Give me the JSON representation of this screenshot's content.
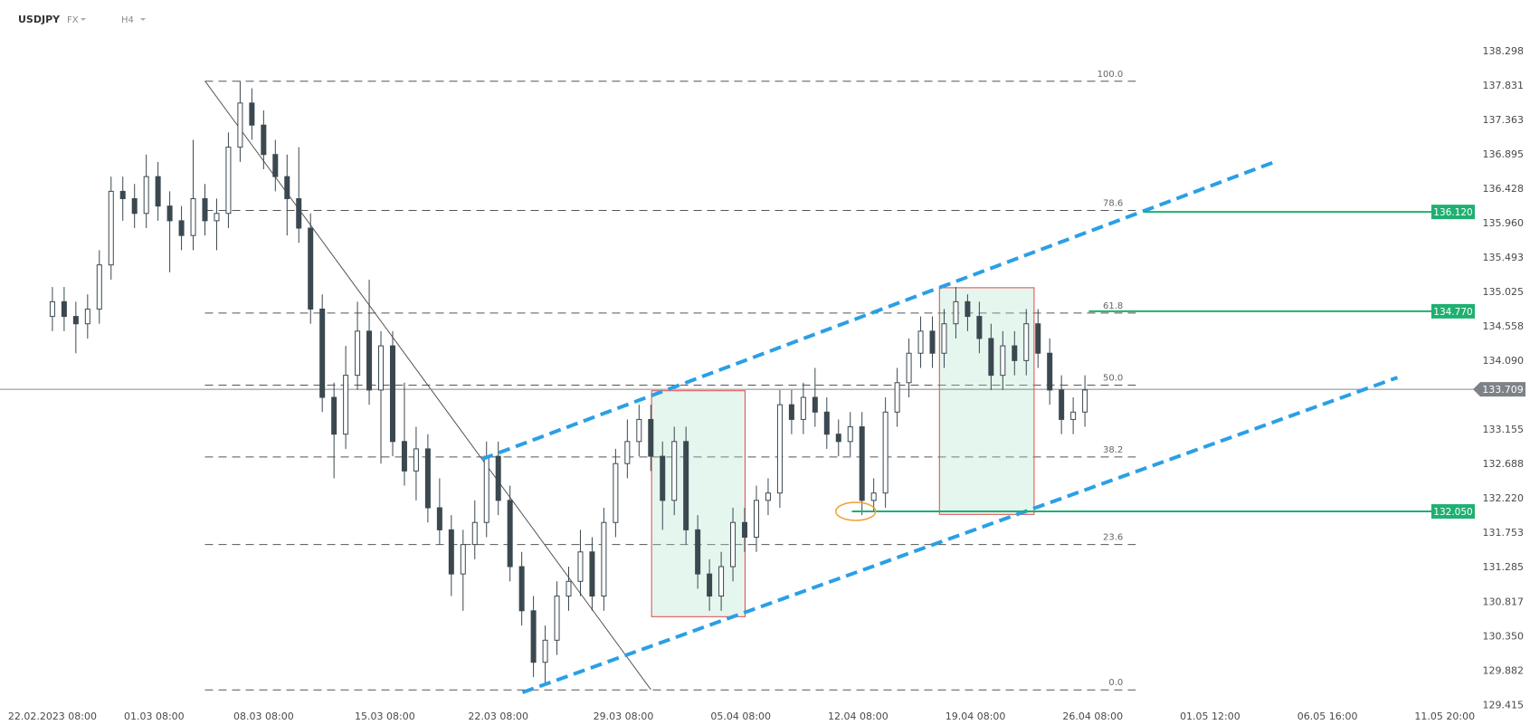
{
  "header": {
    "symbol": "USDJPY",
    "market": "FX",
    "timeframe": "H4"
  },
  "chart_data": {
    "type": "candlestick",
    "x": [
      0,
      3,
      6,
      9,
      12,
      15,
      18,
      21,
      24,
      27,
      30,
      33,
      36,
      39,
      42,
      45,
      48,
      51,
      54,
      57,
      60,
      63,
      66,
      69,
      72,
      75,
      78,
      81,
      84,
      87,
      90,
      93,
      96,
      99,
      102,
      105,
      108,
      111,
      114,
      117,
      120,
      123,
      126,
      129,
      132,
      135,
      138,
      141,
      144,
      147,
      150,
      153,
      156,
      159,
      162,
      165,
      168,
      171,
      174,
      177,
      180,
      183,
      186,
      189,
      192,
      195,
      198,
      201,
      204,
      207,
      210,
      213,
      216,
      219,
      222,
      225,
      228,
      231,
      234,
      237,
      240,
      243,
      246,
      249,
      252,
      255,
      258,
      261,
      264
    ],
    "open": [
      134.7,
      134.9,
      134.7,
      134.6,
      134.8,
      135.4,
      136.4,
      136.3,
      136.1,
      136.6,
      136.2,
      136.0,
      135.8,
      136.3,
      136.0,
      136.1,
      137.0,
      137.6,
      137.3,
      136.9,
      136.6,
      136.3,
      135.9,
      134.8,
      133.6,
      133.1,
      133.9,
      134.5,
      133.7,
      134.3,
      133.0,
      132.6,
      132.9,
      132.1,
      131.8,
      131.2,
      131.6,
      131.9,
      132.8,
      132.2,
      131.3,
      130.7,
      130.0,
      130.3,
      130.9,
      131.1,
      131.5,
      130.9,
      131.9,
      132.7,
      133.0,
      133.3,
      132.8,
      132.2,
      133.0,
      131.8,
      131.2,
      130.9,
      131.3,
      131.9,
      131.7,
      132.2,
      132.3,
      133.5,
      133.3,
      133.6,
      133.4,
      133.1,
      133.0,
      133.2,
      132.2,
      132.3,
      133.4,
      133.8,
      134.2,
      134.5,
      134.2,
      134.6,
      134.9,
      134.7,
      134.4,
      133.9,
      134.3,
      134.1,
      134.6,
      134.2,
      133.7,
      133.3,
      133.4
    ],
    "high": [
      135.1,
      135.1,
      134.9,
      135.0,
      135.6,
      136.6,
      136.6,
      136.5,
      136.9,
      136.8,
      136.4,
      136.2,
      137.1,
      136.5,
      136.3,
      137.2,
      137.9,
      137.8,
      137.5,
      137.1,
      136.9,
      137.0,
      136.1,
      135.0,
      133.8,
      134.3,
      134.9,
      135.2,
      134.5,
      134.5,
      133.8,
      133.2,
      133.1,
      132.5,
      132.0,
      131.8,
      132.2,
      133.0,
      133.0,
      132.4,
      131.5,
      130.9,
      130.5,
      131.1,
      131.3,
      131.8,
      131.7,
      132.1,
      132.9,
      133.3,
      133.5,
      133.5,
      133.0,
      133.2,
      133.2,
      132.0,
      131.4,
      131.5,
      132.1,
      132.1,
      132.4,
      132.5,
      133.7,
      133.7,
      133.8,
      134.0,
      133.6,
      133.3,
      133.4,
      133.4,
      132.5,
      133.6,
      134.0,
      134.4,
      134.7,
      134.7,
      134.8,
      135.1,
      135.0,
      134.9,
      134.6,
      134.5,
      134.5,
      134.8,
      134.8,
      134.4,
      133.9,
      133.6,
      133.9
    ],
    "low": [
      134.5,
      134.5,
      134.2,
      134.4,
      134.6,
      135.2,
      136.0,
      135.9,
      135.9,
      136.0,
      135.3,
      135.6,
      135.6,
      135.8,
      135.6,
      135.9,
      136.8,
      137.1,
      136.7,
      136.4,
      135.8,
      135.7,
      134.6,
      133.4,
      132.5,
      132.9,
      133.7,
      133.5,
      132.7,
      132.8,
      132.4,
      132.2,
      131.9,
      131.6,
      130.9,
      130.7,
      131.4,
      131.7,
      132.0,
      131.1,
      130.5,
      129.8,
      129.7,
      130.1,
      130.7,
      130.9,
      130.7,
      130.7,
      131.7,
      132.5,
      132.8,
      132.6,
      131.8,
      132.0,
      131.6,
      131.0,
      130.7,
      130.7,
      131.1,
      131.5,
      131.5,
      132.0,
      132.1,
      133.1,
      133.1,
      133.2,
      132.9,
      132.8,
      132.8,
      132.0,
      132.05,
      132.1,
      133.2,
      133.6,
      134.0,
      134.0,
      134.0,
      134.4,
      134.5,
      134.2,
      133.7,
      133.7,
      133.9,
      133.9,
      134.0,
      133.5,
      133.1,
      133.1,
      133.2
    ],
    "close": [
      134.9,
      134.7,
      134.6,
      134.8,
      135.4,
      136.4,
      136.3,
      136.1,
      136.6,
      136.2,
      136.0,
      135.8,
      136.3,
      136.0,
      136.1,
      137.0,
      137.6,
      137.3,
      136.9,
      136.6,
      136.3,
      135.9,
      134.8,
      133.6,
      133.1,
      133.9,
      134.5,
      133.7,
      134.3,
      133.0,
      132.6,
      132.9,
      132.1,
      131.8,
      131.2,
      131.6,
      131.9,
      132.8,
      132.2,
      131.3,
      130.7,
      130.0,
      130.3,
      130.9,
      131.1,
      131.5,
      130.9,
      131.9,
      132.7,
      133.0,
      133.3,
      132.8,
      132.2,
      133.0,
      131.8,
      131.2,
      130.9,
      131.3,
      131.9,
      131.7,
      132.2,
      132.3,
      133.5,
      133.3,
      133.6,
      133.4,
      133.1,
      133.0,
      133.2,
      132.2,
      132.3,
      133.4,
      133.8,
      134.2,
      134.5,
      134.2,
      134.6,
      134.9,
      134.7,
      134.4,
      133.9,
      134.3,
      134.1,
      134.6,
      134.2,
      133.7,
      133.3,
      133.4,
      133.7
    ],
    "up_color": "#ffffff",
    "down_color": "#3b4850",
    "xlim": [
      -13.4,
      366
    ],
    "ylim": [
      129.32,
      139.0
    ],
    "xticks": [
      {
        "value": 0,
        "label": "22.02.2023  08:00"
      },
      {
        "value": 26,
        "label": "01.03  08:00"
      },
      {
        "value": 54,
        "label": "08.03  08:00"
      },
      {
        "value": 85,
        "label": "15.03  08:00"
      },
      {
        "value": 114,
        "label": "22.03  08:00"
      },
      {
        "value": 146,
        "label": "29.03  08:00"
      },
      {
        "value": 176,
        "label": "05.04  08:00"
      },
      {
        "value": 206,
        "label": "12.04  08:00"
      },
      {
        "value": 236,
        "label": "19.04  08:00"
      },
      {
        "value": 266,
        "label": "26.04  08:00"
      },
      {
        "value": 296,
        "label": "01.05  12:00"
      },
      {
        "value": 326,
        "label": "06.05  16:00"
      },
      {
        "value": 356,
        "label": "11.05  20:00"
      }
    ],
    "yticks": [
      138.298,
      137.831,
      137.363,
      136.895,
      136.428,
      {
        "value": 135.96,
        "label": "135.960"
      },
      135.493,
      135.025,
      134.558,
      {
        "value": 134.09,
        "label": "134.090"
      },
      133.155,
      132.688,
      {
        "value": 132.22,
        "label": "132.220"
      },
      131.753,
      131.285,
      130.817,
      {
        "value": 130.35,
        "label": "130.350"
      },
      129.882,
      129.415
    ],
    "fib_levels": {
      "x": [
        39,
        277
      ],
      "levels": [
        {
          "value": 137.896,
          "label": "100.0"
        },
        {
          "value": 136.14,
          "label": "78.6"
        },
        {
          "value": 134.746,
          "label": "61.8"
        },
        {
          "value": 133.767,
          "label": "50.0"
        },
        {
          "value": 132.79,
          "label": "38.2"
        },
        {
          "value": 131.6,
          "label": "23.6"
        },
        {
          "value": 129.625,
          "label": "0.0"
        }
      ]
    },
    "price_lines": [
      {
        "value": 136.12,
        "label": "136.120",
        "x": 279
      },
      {
        "value": 134.77,
        "label": "134.770",
        "x": 265
      },
      {
        "value": 132.05,
        "label": "132.050",
        "x": 204.4
      }
    ],
    "price_line_color": "#1fb071",
    "current_price": 133.709,
    "trend_line": {
      "x": [
        39,
        153
      ],
      "y": [
        137.9,
        129.63
      ]
    },
    "channel": [
      {
        "x": [
          109.8,
          313
        ],
        "y": [
          132.76,
          136.81
        ]
      },
      {
        "x": [
          120.2,
          343.9
        ],
        "y": [
          129.59,
          133.87
        ]
      }
    ],
    "channel_color": "#2b9fe6",
    "boxes": [
      {
        "x": [
          153.2,
          177.1
        ],
        "y": [
          133.69,
          130.62
        ]
      },
      {
        "x": [
          226.8,
          251
        ],
        "y": [
          135.09,
          132.01
        ]
      }
    ],
    "marker": {
      "x": 205.4,
      "y": 132.05
    }
  }
}
